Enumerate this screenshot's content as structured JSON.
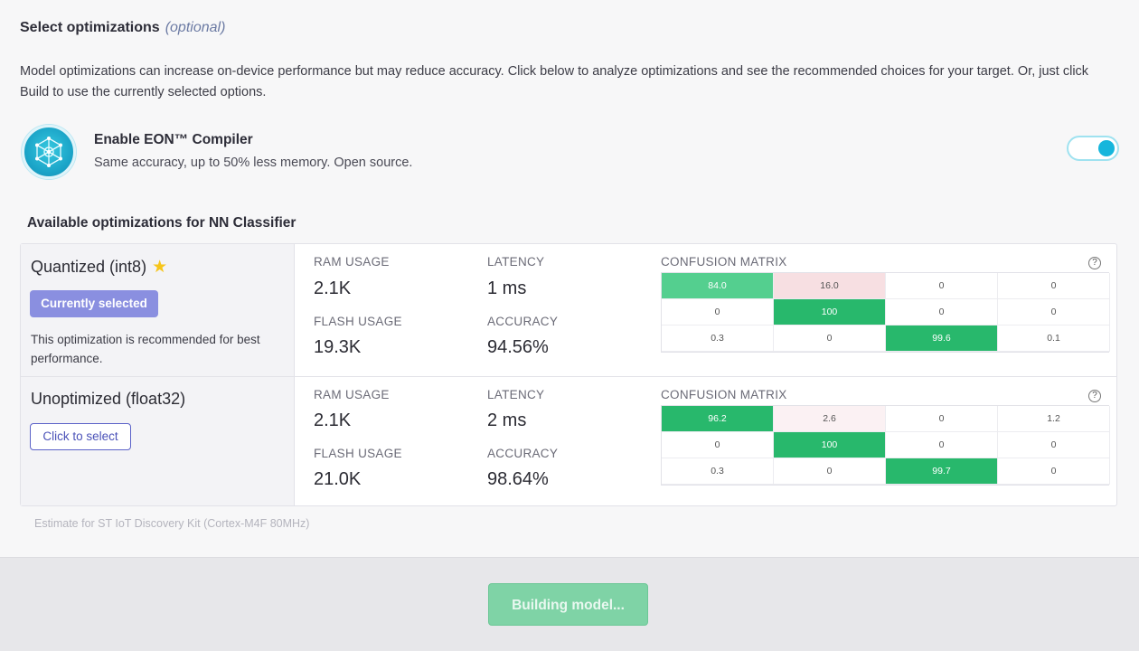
{
  "header": {
    "title": "Select optimizations",
    "optional_label": "(optional)",
    "description": "Model optimizations can increase on-device performance but may reduce accuracy. Click below to analyze optimizations and see the recommended choices for your target. Or, just click Build to use the currently selected options."
  },
  "eon": {
    "title": "Enable EON™ Compiler",
    "subtitle": "Same accuracy, up to 50% less memory. Open source.",
    "toggle_on": true,
    "accent_color": "#16b6dc"
  },
  "optimizations": {
    "title": "Available optimizations for NN Classifier",
    "labels": {
      "ram": "RAM USAGE",
      "latency": "LATENCY",
      "flash": "FLASH USAGE",
      "accuracy": "ACCURACY",
      "confusion": "CONFUSION MATRIX"
    },
    "rows": [
      {
        "name": "Quantized (int8)",
        "recommended": true,
        "button_label": "Currently selected",
        "note": "This optimization is recommended for best performance.",
        "ram": "2.1K",
        "latency": "1 ms",
        "flash": "19.3K",
        "accuracy": "94.56%",
        "matrix": [
          [
            "84.0",
            "16.0",
            "0",
            "0"
          ],
          [
            "0",
            "100",
            "0",
            "0"
          ],
          [
            "0.3",
            "0",
            "99.6",
            "0.1"
          ]
        ]
      },
      {
        "name": "Unoptimized (float32)",
        "recommended": false,
        "button_label": "Click to select",
        "note": "",
        "ram": "2.1K",
        "latency": "2 ms",
        "flash": "21.0K",
        "accuracy": "98.64%",
        "matrix": [
          [
            "96.2",
            "2.6",
            "0",
            "1.2"
          ],
          [
            "0",
            "100",
            "0",
            "0"
          ],
          [
            "0.3",
            "0",
            "99.7",
            "0"
          ]
        ]
      }
    ],
    "estimate_note": "Estimate for ST IoT Discovery Kit (Cortex-M4F 80MHz)"
  },
  "footer": {
    "build_button": "Building model...",
    "build_color": "#7fd3a6"
  },
  "icons": {
    "eon_logo": "eon-compiler-logo-icon",
    "star": "star-icon",
    "help": "help-circle-icon"
  }
}
